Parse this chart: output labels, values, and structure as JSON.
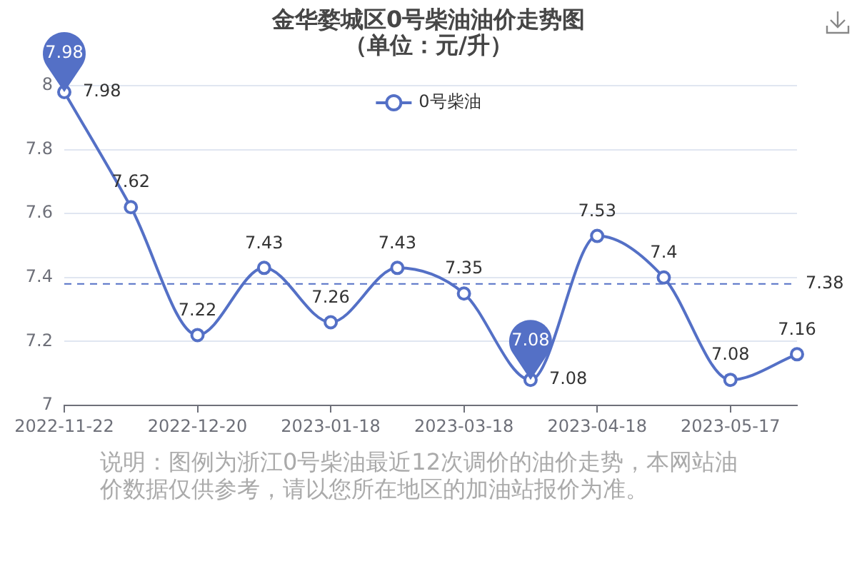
{
  "chart_data": {
    "type": "line",
    "title": "金华婺城区0号柴油油价走势图",
    "subtitle": "（单位：元/升）",
    "categories": [
      "2022-11-22",
      null,
      "2022-12-20",
      null,
      "2023-01-18",
      null,
      "2023-03-18",
      null,
      "2023-04-18",
      null,
      "2023-05-17",
      null
    ],
    "series": [
      {
        "name": "0号柴油",
        "color": "#5470c6",
        "values": [
          7.98,
          7.62,
          7.22,
          7.43,
          7.26,
          7.43,
          7.35,
          7.08,
          7.53,
          7.4,
          7.08,
          7.16
        ]
      }
    ],
    "ylim": [
      7,
      8
    ],
    "yticks": [
      7,
      7.2,
      7.4,
      7.6,
      7.8,
      8
    ],
    "grid": "y",
    "legend": "top",
    "marker": "circle",
    "data_labels": true,
    "ref_lines": [
      {
        "axis": "y",
        "value": 7.38,
        "label": "7.38",
        "color": "#5470c6",
        "line_style": "dashed"
      }
    ],
    "annotations": [
      {
        "text": "7.98",
        "x": "2022-11-22",
        "y": 7.98
      },
      {
        "text": "7.08",
        "y": 7.08
      },
      "说明：图例为浙江0号柴油最近12次调价的油价走势，本网站油价数据仅供参考，请以您所在地区的加油站报价为准。"
    ]
  }
}
